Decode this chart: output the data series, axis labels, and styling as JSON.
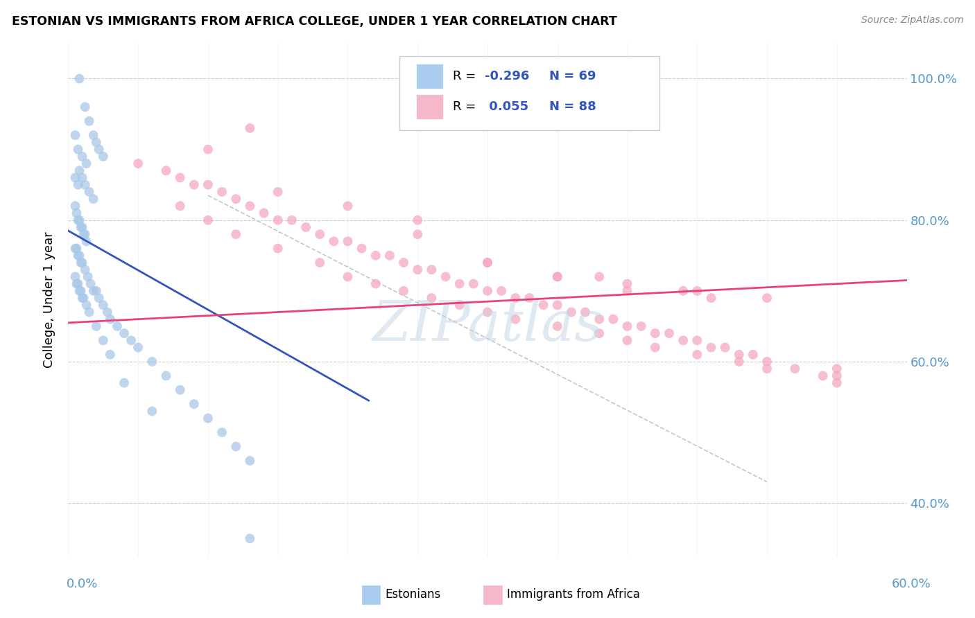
{
  "title": "ESTONIAN VS IMMIGRANTS FROM AFRICA COLLEGE, UNDER 1 YEAR CORRELATION CHART",
  "source": "Source: ZipAtlas.com",
  "ylabel": "College, Under 1 year",
  "ytick_vals": [
    0.4,
    0.6,
    0.8,
    1.0
  ],
  "xlim": [
    0.0,
    0.6
  ],
  "ylim": [
    0.325,
    1.05
  ],
  "color_estonian": "#a8c8e8",
  "color_immigrant": "#f5a8be",
  "trend_color_estonian": "#3355bb",
  "trend_color_immigrant": "#e8407a",
  "diagonal_color": "#c0c8d0",
  "legend_box_color": "#dddddd",
  "estonians_x": [
    0.008,
    0.012,
    0.015,
    0.018,
    0.02,
    0.022,
    0.025,
    0.005,
    0.007,
    0.01,
    0.013,
    0.008,
    0.01,
    0.012,
    0.015,
    0.018,
    0.005,
    0.007,
    0.005,
    0.006,
    0.007,
    0.008,
    0.009,
    0.01,
    0.011,
    0.012,
    0.013,
    0.005,
    0.006,
    0.007,
    0.008,
    0.009,
    0.01,
    0.012,
    0.014,
    0.016,
    0.018,
    0.02,
    0.022,
    0.025,
    0.028,
    0.03,
    0.035,
    0.04,
    0.045,
    0.05,
    0.06,
    0.07,
    0.08,
    0.09,
    0.1,
    0.11,
    0.12,
    0.13,
    0.005,
    0.006,
    0.007,
    0.008,
    0.009,
    0.01,
    0.011,
    0.013,
    0.015,
    0.02,
    0.025,
    0.03,
    0.04,
    0.06,
    0.13
  ],
  "estonians_y": [
    1.0,
    0.96,
    0.94,
    0.92,
    0.91,
    0.9,
    0.89,
    0.92,
    0.9,
    0.89,
    0.88,
    0.87,
    0.86,
    0.85,
    0.84,
    0.83,
    0.86,
    0.85,
    0.82,
    0.81,
    0.8,
    0.8,
    0.79,
    0.79,
    0.78,
    0.78,
    0.77,
    0.76,
    0.76,
    0.75,
    0.75,
    0.74,
    0.74,
    0.73,
    0.72,
    0.71,
    0.7,
    0.7,
    0.69,
    0.68,
    0.67,
    0.66,
    0.65,
    0.64,
    0.63,
    0.62,
    0.6,
    0.58,
    0.56,
    0.54,
    0.52,
    0.5,
    0.48,
    0.46,
    0.72,
    0.71,
    0.71,
    0.7,
    0.7,
    0.69,
    0.69,
    0.68,
    0.67,
    0.65,
    0.63,
    0.61,
    0.57,
    0.53,
    0.35
  ],
  "immigrants_x": [
    0.05,
    0.07,
    0.08,
    0.09,
    0.1,
    0.1,
    0.11,
    0.12,
    0.13,
    0.14,
    0.15,
    0.16,
    0.17,
    0.18,
    0.19,
    0.2,
    0.21,
    0.22,
    0.23,
    0.24,
    0.25,
    0.26,
    0.27,
    0.28,
    0.29,
    0.3,
    0.31,
    0.32,
    0.33,
    0.34,
    0.35,
    0.36,
    0.37,
    0.38,
    0.39,
    0.4,
    0.41,
    0.42,
    0.43,
    0.44,
    0.45,
    0.46,
    0.47,
    0.48,
    0.49,
    0.5,
    0.52,
    0.54,
    0.55,
    0.08,
    0.1,
    0.12,
    0.15,
    0.18,
    0.2,
    0.22,
    0.24,
    0.26,
    0.28,
    0.3,
    0.32,
    0.35,
    0.38,
    0.4,
    0.42,
    0.45,
    0.48,
    0.5,
    0.55,
    0.25,
    0.3,
    0.35,
    0.4,
    0.45,
    0.5,
    0.15,
    0.2,
    0.25,
    0.3,
    0.35,
    0.4,
    0.13,
    0.38,
    0.44,
    0.46,
    0.55
  ],
  "immigrants_y": [
    0.88,
    0.87,
    0.86,
    0.85,
    0.85,
    0.9,
    0.84,
    0.83,
    0.82,
    0.81,
    0.8,
    0.8,
    0.79,
    0.78,
    0.77,
    0.77,
    0.76,
    0.75,
    0.75,
    0.74,
    0.73,
    0.73,
    0.72,
    0.71,
    0.71,
    0.7,
    0.7,
    0.69,
    0.69,
    0.68,
    0.68,
    0.67,
    0.67,
    0.66,
    0.66,
    0.65,
    0.65,
    0.64,
    0.64,
    0.63,
    0.63,
    0.62,
    0.62,
    0.61,
    0.61,
    0.6,
    0.59,
    0.58,
    0.58,
    0.82,
    0.8,
    0.78,
    0.76,
    0.74,
    0.72,
    0.71,
    0.7,
    0.69,
    0.68,
    0.67,
    0.66,
    0.65,
    0.64,
    0.63,
    0.62,
    0.61,
    0.6,
    0.59,
    0.57,
    0.78,
    0.74,
    0.72,
    0.71,
    0.7,
    0.69,
    0.84,
    0.82,
    0.8,
    0.74,
    0.72,
    0.7,
    0.93,
    0.72,
    0.7,
    0.69,
    0.59
  ]
}
